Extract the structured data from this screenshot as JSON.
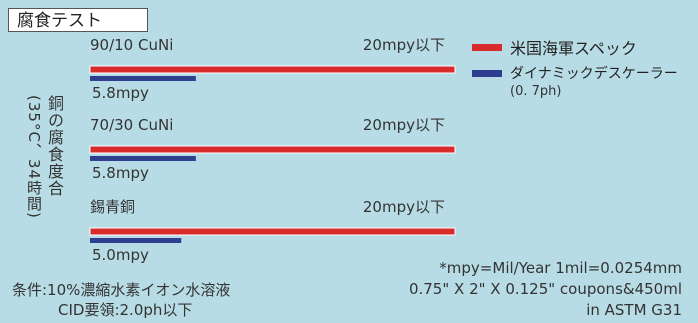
{
  "title": "腐食テスト",
  "ylabel": {
    "main": "銅の腐食度合",
    "sub": "(35°C、34時間)"
  },
  "legend": {
    "spec": {
      "label": "米国海軍スペック",
      "color": "#d92b2b"
    },
    "descaler": {
      "label": "ダイナミックデスケーラー",
      "sub": "(0. 7ph)",
      "color": "#2e3f8f"
    }
  },
  "chart_data": {
    "type": "bar",
    "orientation": "horizontal",
    "unit": "mpy",
    "categories": [
      "90/10 CuNi",
      "70/30 CuNi",
      "錫青銅"
    ],
    "series": [
      {
        "name": "米国海軍スペック",
        "values": [
          20,
          20,
          20
        ],
        "labels": [
          "20mpy以下",
          "20mpy以下",
          "20mpy以下"
        ]
      },
      {
        "name": "ダイナミックデスケーラー",
        "values": [
          5.8,
          5.8,
          5.0
        ],
        "labels": [
          "5.8mpy",
          "5.8mpy",
          "5.0mpy"
        ]
      }
    ]
  },
  "notes": {
    "conditions": "条件:10%濃縮水素イオン水溶液",
    "cid": "CID要領:2.0ph以下",
    "right1": "*mpy=Mil/Year 1mil=0.0254mm",
    "right2": "0.75\" X 2\" X 0.125\" coupons&450ml",
    "right3": "in ASTM G31"
  }
}
